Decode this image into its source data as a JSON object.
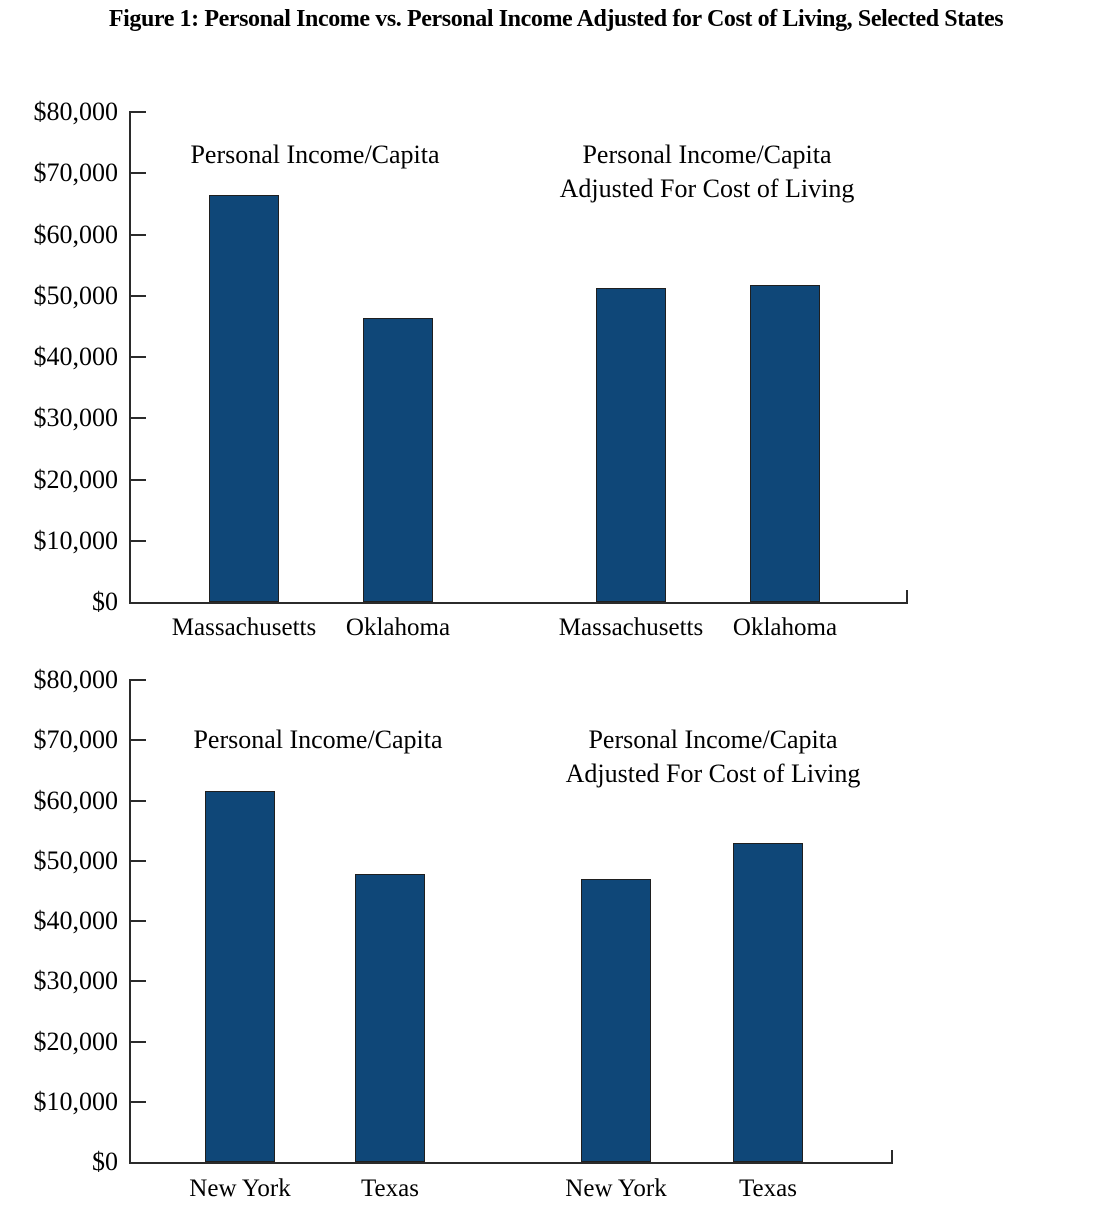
{
  "title": "Figure 1: Personal Income vs. Personal Income Adjusted for Cost of Living, Selected States",
  "colors": {
    "bar_fill": "#0F4778",
    "axis": "#2b2b2b",
    "text": "#000000"
  },
  "chart_data": [
    {
      "type": "bar",
      "panel": "top",
      "group_headers": [
        [
          "Personal Income/Capita"
        ],
        [
          "Personal Income/Capita",
          "Adjusted For Cost of Living"
        ]
      ],
      "categories": [
        "Massachusetts",
        "Oklahoma",
        "Massachusetts",
        "Oklahoma"
      ],
      "values": [
        66500,
        46300,
        51200,
        51700
      ],
      "y_tick_labels": [
        "$80,000",
        "$70,000",
        "$60,000",
        "$50,000",
        "$40,000",
        "$30,000",
        "$20,000",
        "$10,000",
        "$0"
      ],
      "ylim": [
        0,
        80000
      ],
      "ylabel": "",
      "xlabel": "",
      "grid": false,
      "legend": "none",
      "bar_color": "#0F4778"
    },
    {
      "type": "bar",
      "panel": "bottom",
      "group_headers": [
        [
          "Personal Income/Capita"
        ],
        [
          "Personal Income/Capita",
          "Adjusted For Cost of Living"
        ]
      ],
      "categories": [
        "New York",
        "Texas",
        "New York",
        "Texas"
      ],
      "values": [
        61500,
        47800,
        46900,
        52900
      ],
      "y_tick_labels": [
        "$80,000",
        "$70,000",
        "$60,000",
        "$50,000",
        "$40,000",
        "$30,000",
        "$20,000",
        "$10,000",
        "$0"
      ],
      "ylim": [
        0,
        80000
      ],
      "ylabel": "",
      "xlabel": "",
      "grid": false,
      "legend": "none",
      "bar_color": "#0F4778"
    }
  ]
}
